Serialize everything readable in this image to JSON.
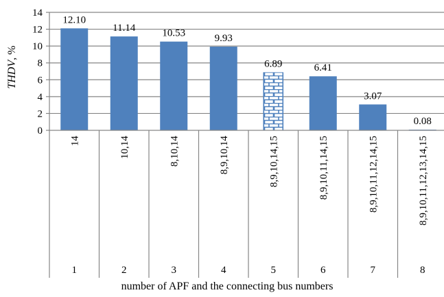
{
  "chart_data": {
    "type": "bar",
    "title": "",
    "ylabel_main": "THDV",
    "ylabel_unit": ", %",
    "xlabel": "number of APF and the connecting bus numbers",
    "ylim": [
      0,
      14
    ],
    "yticks": [
      0,
      2,
      4,
      6,
      8,
      10,
      12,
      14
    ],
    "grid": true,
    "bar_color": "#4f81bd",
    "categories": [
      {
        "number": "1",
        "buses": "14"
      },
      {
        "number": "2",
        "buses": "10,14"
      },
      {
        "number": "3",
        "buses": "8,10,14"
      },
      {
        "number": "4",
        "buses": "8,9,10,14"
      },
      {
        "number": "5",
        "buses": "8,9,10,14,15"
      },
      {
        "number": "6",
        "buses": "8,9,10,11,14,15"
      },
      {
        "number": "7",
        "buses": "8,9,10,11,12,14,15"
      },
      {
        "number": "8",
        "buses": "8,9,10,11,12,13,14,15"
      }
    ],
    "values": [
      12.1,
      11.14,
      10.53,
      9.93,
      6.89,
      6.41,
      3.07,
      0.08
    ],
    "data_labels": [
      "12.10",
      "11.14",
      "10.53",
      "9.93",
      "6.89",
      "6.41",
      "3.07",
      "0.08"
    ],
    "highlighted_index": 4,
    "highlight_pattern": "brick"
  }
}
